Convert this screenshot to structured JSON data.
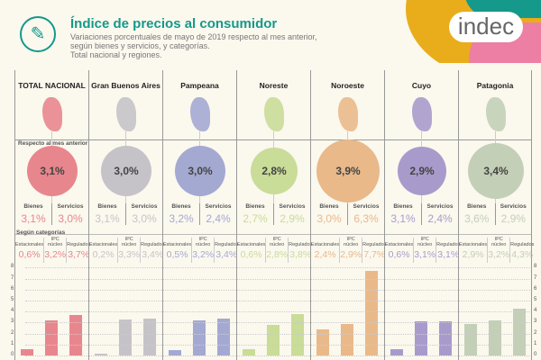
{
  "header": {
    "title": "Índice de precios al consumidor",
    "subtitle": [
      "Variaciones porcentuales de mayo de 2019 respecto al mes anterior,",
      "según bienes y servicios, y categorías.",
      "Total nacional y regiones."
    ],
    "logo": "indec",
    "icon": "notepad-pencil-icon"
  },
  "labels": {
    "respecto": "Respecto al mes anterior",
    "segun": "Según categorías",
    "bienes": "Bienes",
    "servicios": "Servicios",
    "estacionales": "Estacionales",
    "nucleo": "IPC núcleo",
    "regulados": "Regulados"
  },
  "chart_data": {
    "type": "bar",
    "ylim": [
      0,
      8
    ],
    "yticks": [
      0,
      1,
      2,
      3,
      4,
      5,
      6,
      7,
      8
    ],
    "categories": [
      "Estacionales",
      "IPC núcleo",
      "Regulados"
    ],
    "series": [
      {
        "name": "TOTAL NACIONAL",
        "color": "#e8868d",
        "total": "3,1%",
        "bienes": "3,1%",
        "servicios": "3,0%",
        "values": [
          0.6,
          3.2,
          3.7
        ]
      },
      {
        "name": "Gran Buenos Aires",
        "color": "#c6c3c8",
        "total": "3,0%",
        "bienes": "3,1%",
        "servicios": "3,0%",
        "values": [
          0.2,
          3.3,
          3.4
        ]
      },
      {
        "name": "Pampeana",
        "color": "#a4a9d2",
        "total": "3,0%",
        "bienes": "3,2%",
        "servicios": "2,4%",
        "values": [
          0.5,
          3.2,
          3.4
        ]
      },
      {
        "name": "Noreste",
        "color": "#c9dc98",
        "total": "2,8%",
        "bienes": "2,7%",
        "servicios": "2,9%",
        "values": [
          0.6,
          2.8,
          3.8
        ]
      },
      {
        "name": "Noroeste",
        "color": "#e9b98a",
        "total": "3,9%",
        "bienes": "3,0%",
        "servicios": "6,3%",
        "values": [
          2.4,
          2.9,
          7.7
        ]
      },
      {
        "name": "Cuyo",
        "color": "#a89bcc",
        "total": "2,9%",
        "bienes": "3,1%",
        "servicios": "2,4%",
        "values": [
          0.6,
          3.1,
          3.1
        ]
      },
      {
        "name": "Patagonia",
        "color": "#c3cfb6",
        "total": "3,4%",
        "bienes": "3,6%",
        "servicios": "2,9%",
        "values": [
          2.9,
          3.2,
          4.3
        ]
      }
    ]
  }
}
